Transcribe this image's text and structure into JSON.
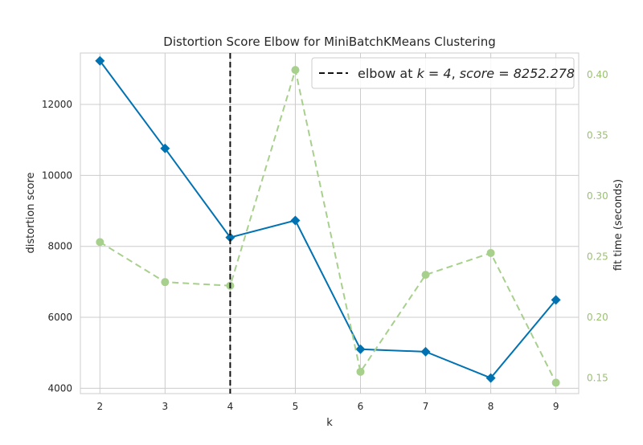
{
  "chart_data": {
    "type": "line",
    "title": "Distortion Score Elbow for MiniBatchKMeans Clustering",
    "xlabel": "k",
    "ylabel": "distortion score",
    "y2label": "fit time (seconds)",
    "x": [
      2,
      3,
      4,
      5,
      6,
      7,
      8,
      9
    ],
    "xlim": [
      1.7,
      9.35
    ],
    "ylim": [
      3850,
      13450
    ],
    "y2lim": [
      0.137,
      0.418
    ],
    "x_ticks": [
      2,
      3,
      4,
      5,
      6,
      7,
      8,
      9
    ],
    "y_ticks": [
      4000,
      6000,
      8000,
      10000,
      12000
    ],
    "y2_ticks": [
      0.15,
      0.2,
      0.25,
      0.3,
      0.35,
      0.4
    ],
    "y2_tick_labels": [
      "0.15",
      "0.20",
      "0.25",
      "0.30",
      "0.35",
      "0.40"
    ],
    "grid": true,
    "legend_position": "top-right",
    "series": [
      {
        "axis": "left",
        "style": "solid",
        "marker": "diamond",
        "color": "#0072B2",
        "values": [
          13230,
          10760,
          8252.278,
          8730,
          5100,
          5030,
          4290,
          6490
        ]
      },
      {
        "axis": "right",
        "style": "dashed",
        "marker": "circle",
        "color": "#A8D08D",
        "values": [
          0.262,
          0.229,
          0.226,
          0.404,
          0.155,
          0.235,
          0.253,
          0.146
        ]
      }
    ],
    "elbow": {
      "k": 4,
      "score": 8252.278,
      "legend_prefix": "elbow at ",
      "legend_k_label": "k = 4",
      "legend_score_label": "score = 8252.278"
    },
    "colors": {
      "grid": "#cccccc",
      "axis_spine": "#cccccc",
      "right_axis_text": "#9bbf73",
      "elbow_line": "#111111"
    }
  }
}
